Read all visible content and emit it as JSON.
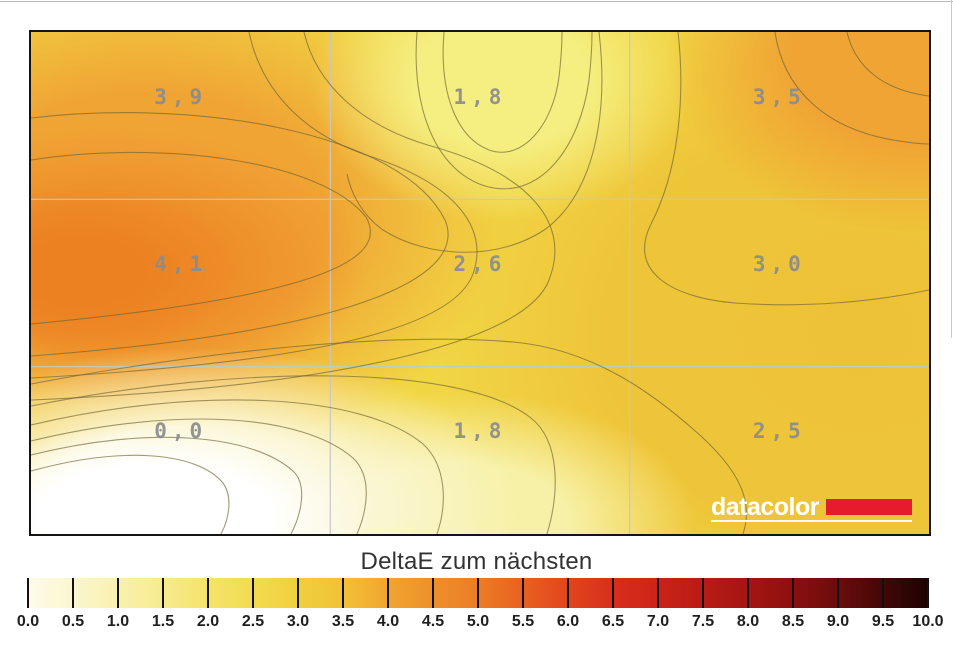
{
  "chart_data": {
    "type": "heatmap",
    "title": "DeltaE zum nächsten",
    "grid_rows": 3,
    "grid_cols": 3,
    "grid_on": true,
    "legend_position": "bottom",
    "cells": [
      {
        "row": 0,
        "col": 0,
        "label": "3,9",
        "value": 3.9
      },
      {
        "row": 0,
        "col": 1,
        "label": "1,8",
        "value": 1.8
      },
      {
        "row": 0,
        "col": 2,
        "label": "3,5",
        "value": 3.5
      },
      {
        "row": 1,
        "col": 0,
        "label": "4,1",
        "value": 4.1
      },
      {
        "row": 1,
        "col": 1,
        "label": "2,6",
        "value": 2.6
      },
      {
        "row": 1,
        "col": 2,
        "label": "3,0",
        "value": 3.0
      },
      {
        "row": 2,
        "col": 0,
        "label": "0,0",
        "value": 0.0
      },
      {
        "row": 2,
        "col": 1,
        "label": "1,8",
        "value": 1.8
      },
      {
        "row": 2,
        "col": 2,
        "label": "2,5",
        "value": 2.5
      }
    ],
    "colorbar": {
      "min": 0.0,
      "max": 10.0,
      "step": 0.5,
      "tick_labels": [
        "0.0",
        "0.5",
        "1.0",
        "1.5",
        "2.0",
        "2.5",
        "3.0",
        "3.5",
        "4.0",
        "4.5",
        "5.0",
        "5.5",
        "6.0",
        "6.5",
        "7.0",
        "7.5",
        "8.0",
        "8.5",
        "9.0",
        "9.5",
        "10.0"
      ],
      "stops": [
        "#FDFBE9",
        "#FBF6CF",
        "#F9F1AF",
        "#F7EB8E",
        "#F4E46A",
        "#F2DB4F",
        "#F1CF3F",
        "#F2C136",
        "#F0A52F",
        "#EE902B",
        "#EC7C26",
        "#E86121",
        "#E2451D",
        "#D72F1B",
        "#CB2318",
        "#BA1B15",
        "#A51512",
        "#8C100F",
        "#6B0C0C",
        "#430707",
        "#1D0303"
      ]
    }
  },
  "branding": {
    "logo_text": "datacolor",
    "logo_bar_color": "#E41C2B"
  },
  "colors": {
    "contour_line": "#6E6432",
    "value_label": "#8A8C8F",
    "title_text": "#333333",
    "tick_text": "#1F1F1F"
  }
}
